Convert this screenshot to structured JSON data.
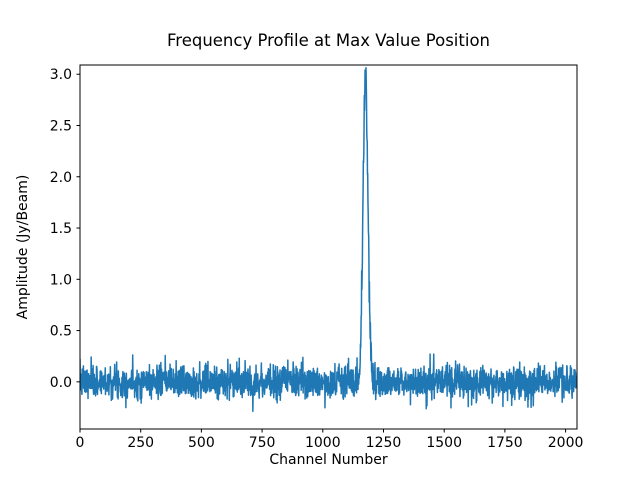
{
  "chart_data": {
    "type": "line",
    "title": "Frequency Profile at Max Value Position",
    "xlabel": "Channel Number",
    "ylabel": "Amplitude (Jy/Beam)",
    "xlim": [
      0,
      2047
    ],
    "ylim": [
      -0.46,
      3.09
    ],
    "xticks": {
      "values": [
        0,
        250,
        500,
        750,
        1000,
        1250,
        1500,
        1750,
        2000
      ],
      "labels": [
        "0",
        "250",
        "500",
        "750",
        "1000",
        "1250",
        "1500",
        "1750",
        "2000"
      ]
    },
    "yticks": {
      "values": [
        0.0,
        0.5,
        1.0,
        1.5,
        2.0,
        2.5,
        3.0
      ],
      "labels": [
        "0.0",
        "0.5",
        "1.0",
        "1.5",
        "2.0",
        "2.5",
        "3.0"
      ]
    },
    "grid": false,
    "legend": null,
    "background_color": "#ffffff",
    "axes_color": "#000000",
    "series": [
      {
        "name": "frequency-profile",
        "color": "#1f77b4",
        "line_width": 1.5,
        "model": {
          "kind": "gaussian_peak_plus_noise",
          "n_points": 2048,
          "peak_center": 1176,
          "peak_amplitude": 3.0,
          "peak_sigma": 10,
          "noise_sigma": 0.08,
          "noise_mean": 0.0,
          "noise_seed": 7
        },
        "peak_value_approx": 3.0,
        "baseline_value_approx": 0.0
      }
    ]
  }
}
